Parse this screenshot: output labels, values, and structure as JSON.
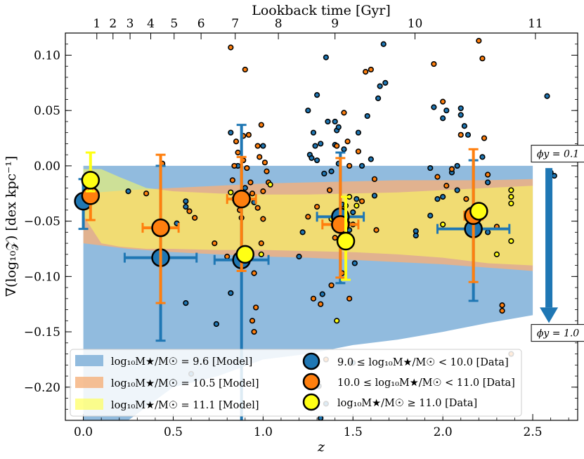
{
  "chart_data": {
    "type": "scatter",
    "title": "",
    "xlabel": "z",
    "ylabel": "∇(log₁₀𝒵) [dex kpc⁻¹]",
    "top_xlabel": "Lookback time [Gyr]",
    "xlim": [
      -0.1,
      2.75
    ],
    "ylim": [
      -0.23,
      0.12
    ],
    "xticks": [
      0.0,
      0.5,
      1.0,
      1.5,
      2.0,
      2.5
    ],
    "xtick_labels": [
      "0.0",
      "0.5",
      "1.0",
      "1.5",
      "2.0",
      "2.5"
    ],
    "yticks": [
      -0.2,
      -0.15,
      -0.1,
      -0.05,
      0.0,
      0.05,
      0.1
    ],
    "ytick_labels": [
      "−0.20",
      "−0.15",
      "−0.10",
      "−0.05",
      "0.00",
      "0.05",
      "0.10"
    ],
    "top_ticks": [
      {
        "z": 0.075,
        "label": "1"
      },
      {
        "z": 0.165,
        "label": "2"
      },
      {
        "z": 0.26,
        "label": "3"
      },
      {
        "z": 0.375,
        "label": "4"
      },
      {
        "z": 0.505,
        "label": "5"
      },
      {
        "z": 0.655,
        "label": "6"
      },
      {
        "z": 0.845,
        "label": "7"
      },
      {
        "z": 1.085,
        "label": "8"
      },
      {
        "z": 1.4,
        "label": "9"
      },
      {
        "z": 1.845,
        "label": "10"
      },
      {
        "z": 2.515,
        "label": "11"
      }
    ],
    "model_bands": [
      {
        "name": "log₁₀M★/M☉ = 9.6 [Model]",
        "color": "#8bb7dc",
        "z": [
          0.0,
          0.25,
          0.5,
          0.75,
          1.0,
          1.25,
          1.5,
          1.75,
          2.0,
          2.25,
          2.5
        ],
        "upper": [
          0.0,
          0.0,
          0.0,
          0.0,
          0.0,
          0.0,
          0.0,
          0.0,
          0.0,
          0.0,
          0.0
        ],
        "lower": [
          -0.23,
          -0.23,
          -0.2,
          -0.19,
          -0.175,
          -0.17,
          -0.162,
          -0.157,
          -0.15,
          -0.142,
          -0.135
        ]
      },
      {
        "name": "log₁₀M★/M☉ = 10.5 [Model]",
        "color": "#f5b07a",
        "z": [
          0.0,
          0.25,
          0.5,
          0.75,
          1.0,
          1.25,
          1.5,
          1.75,
          2.0,
          2.25,
          2.5
        ],
        "upper": [
          -0.025,
          -0.022,
          -0.02,
          -0.018,
          -0.016,
          -0.015,
          -0.014,
          -0.013,
          -0.013,
          -0.013,
          -0.012
        ],
        "lower": [
          -0.07,
          -0.075,
          -0.078,
          -0.08,
          -0.082,
          -0.083,
          -0.085,
          -0.087,
          -0.089,
          -0.092,
          -0.095
        ]
      },
      {
        "name": "log₁₀M★/M☉ = 11.1 [Model]",
        "color": "#ffff5c",
        "z": [
          0.0,
          0.1,
          0.2,
          0.35,
          0.5,
          0.75,
          1.0,
          1.25,
          1.5,
          1.75,
          2.0,
          2.25,
          2.5
        ],
        "upper": [
          -0.003,
          -0.003,
          -0.01,
          -0.02,
          -0.023,
          -0.025,
          -0.026,
          -0.026,
          -0.025,
          -0.024,
          -0.022,
          -0.02,
          -0.018
        ],
        "lower": [
          -0.045,
          -0.07,
          -0.073,
          -0.075,
          -0.075,
          -0.076,
          -0.076,
          -0.077,
          -0.078,
          -0.08,
          -0.083,
          -0.088,
          -0.09
        ]
      }
    ],
    "binned_data": [
      {
        "name": "9.0 ≤ log₁₀M★/M☉ < 10.0 [Data]",
        "color": "#1f77b4",
        "points": [
          {
            "z": 0.0,
            "y": -0.032,
            "xerr": [
              0.0,
              0.0
            ],
            "yerr": [
              0.025,
              0.02
            ]
          },
          {
            "z": 0.43,
            "y": -0.083,
            "xerr": [
              0.2,
              0.2
            ],
            "yerr": [
              0.075,
              0.083
            ]
          },
          {
            "z": 0.88,
            "y": -0.085,
            "xerr": [
              0.15,
              0.15
            ],
            "yerr": [
              0.15,
              0.122
            ]
          },
          {
            "z": 1.43,
            "y": -0.046,
            "xerr": [
              0.13,
              0.13
            ],
            "yerr": [
              0.06,
              0.058
            ]
          },
          {
            "z": 2.17,
            "y": -0.057,
            "xerr": [
              0.2,
              0.2
            ],
            "yerr": [
              0.065,
              0.062
            ]
          }
        ]
      },
      {
        "name": "10.0 ≤ log₁₀M★/M☉ < 11.0 [Data]",
        "color": "#ff7f0e",
        "points": [
          {
            "z": 0.04,
            "y": -0.027,
            "xerr": [
              0.0,
              0.0
            ],
            "yerr": [
              0.022,
              0.02
            ]
          },
          {
            "z": 0.43,
            "y": -0.056,
            "xerr": [
              0.1,
              0.1
            ],
            "yerr": [
              0.068,
              0.066
            ]
          },
          {
            "z": 0.88,
            "y": -0.03,
            "xerr": [
              0.08,
              0.08
            ],
            "yerr": [
              0.065,
              0.038
            ]
          },
          {
            "z": 1.43,
            "y": -0.053,
            "xerr": [
              0.1,
              0.1
            ],
            "yerr": [
              0.048,
              0.06
            ]
          },
          {
            "z": 2.17,
            "y": -0.045,
            "xerr": [
              0.05,
              0.05
            ],
            "yerr": [
              0.06,
              0.06
            ]
          }
        ]
      },
      {
        "name": "log₁₀M★/M☉ ≥ 11.0 [Data]",
        "color": "#ffff14",
        "points": [
          {
            "z": 0.04,
            "y": -0.013,
            "xerr": [
              0.0,
              0.0
            ],
            "yerr": [
              0.01,
              0.025
            ]
          },
          {
            "z": 0.9,
            "y": -0.08,
            "xerr": [
              0.0,
              0.0
            ],
            "yerr": [
              0.0,
              0.0
            ]
          },
          {
            "z": 1.46,
            "y": -0.068,
            "xerr": [
              0.0,
              0.0
            ],
            "yerr": [
              0.035,
              0.04
            ]
          },
          {
            "z": 2.2,
            "y": -0.041,
            "xerr": [
              0.0,
              0.0
            ],
            "yerr": [
              0.0,
              0.0
            ]
          }
        ]
      }
    ],
    "individual_points": [
      {
        "group": "blue",
        "pts": [
          [
            0.25,
            -0.023
          ],
          [
            0.52,
            -0.052
          ],
          [
            0.57,
            -0.032
          ],
          [
            0.57,
            -0.037
          ],
          [
            0.57,
            -0.124
          ],
          [
            0.6,
            -0.188
          ],
          [
            0.74,
            -0.143
          ],
          [
            0.82,
            -0.115
          ],
          [
            0.82,
            0.03
          ],
          [
            0.84,
            -0.03
          ],
          [
            0.86,
            0.0
          ],
          [
            0.9,
            -0.02
          ],
          [
            0.95,
            -0.033
          ],
          [
            1.0,
            0.018
          ],
          [
            1.2,
            -0.082
          ],
          [
            1.22,
            -0.06
          ],
          [
            1.25,
            0.05
          ],
          [
            1.26,
            0.01
          ],
          [
            1.27,
            0.007
          ],
          [
            1.28,
            0.03
          ],
          [
            1.3,
            0.005
          ],
          [
            1.3,
            0.064
          ],
          [
            1.32,
            0.02
          ],
          [
            1.33,
            -0.116
          ],
          [
            1.35,
            0.098
          ],
          [
            1.36,
            0.04
          ],
          [
            1.38,
            -0.005
          ],
          [
            1.4,
            0.019
          ],
          [
            1.4,
            0.04
          ],
          [
            1.41,
            0.032
          ],
          [
            1.42,
            0.035
          ],
          [
            1.45,
            0.015
          ],
          [
            1.48,
            -0.058
          ],
          [
            1.5,
            -0.042
          ],
          [
            1.51,
            -0.088
          ],
          [
            1.52,
            -0.03
          ],
          [
            1.55,
            0.0
          ],
          [
            1.58,
            0.045
          ],
          [
            1.6,
            0.006
          ],
          [
            1.62,
            -0.027
          ],
          [
            1.64,
            0.061
          ],
          [
            1.65,
            0.072
          ],
          [
            1.67,
            0.11
          ],
          [
            1.68,
            0.075
          ],
          [
            1.5,
            -0.178
          ],
          [
            1.31,
            -0.199
          ],
          [
            1.35,
            -0.215
          ],
          [
            1.32,
            -0.228
          ],
          [
            1.85,
            -0.059
          ],
          [
            1.85,
            -0.063
          ],
          [
            1.93,
            -0.045
          ],
          [
            1.95,
            0.053
          ],
          [
            1.97,
            -0.03
          ],
          [
            2.0,
            -0.028
          ],
          [
            2.0,
            0.043
          ],
          [
            2.02,
            0.05
          ],
          [
            2.05,
            -0.006
          ],
          [
            2.08,
            0.0
          ],
          [
            2.1,
            0.046
          ],
          [
            2.1,
            0.052
          ],
          [
            2.12,
            0.036
          ],
          [
            2.14,
            0.028
          ],
          [
            2.22,
            0.008
          ],
          [
            2.25,
            -0.015
          ],
          [
            2.25,
            -0.06
          ],
          [
            2.58,
            0.063
          ],
          [
            2.6,
            -0.006
          ],
          [
            2.62,
            -0.009
          ],
          [
            1.53,
            0.03
          ],
          [
            1.42,
            0.002
          ],
          [
            1.34,
            -0.007
          ],
          [
            1.29,
            0.018
          ],
          [
            1.44,
            -0.035
          ],
          [
            2.08,
            -0.022
          ],
          [
            1.93,
            -0.002
          ]
        ]
      },
      {
        "group": "orange",
        "pts": [
          [
            0.35,
            -0.025
          ],
          [
            0.44,
            0.002
          ],
          [
            0.59,
            -0.041
          ],
          [
            0.62,
            -0.047
          ],
          [
            0.73,
            -0.07
          ],
          [
            0.8,
            -0.082
          ],
          [
            0.82,
            0.107
          ],
          [
            0.83,
            -0.013
          ],
          [
            0.84,
            0.0
          ],
          [
            0.85,
            0.022
          ],
          [
            0.86,
            0.012
          ],
          [
            0.87,
            -0.04
          ],
          [
            0.88,
            -0.047
          ],
          [
            0.89,
            0.027
          ],
          [
            0.89,
            0.005
          ],
          [
            0.9,
            0.087
          ],
          [
            0.91,
            -0.002
          ],
          [
            0.92,
            0.028
          ],
          [
            0.93,
            -0.015
          ],
          [
            0.94,
            -0.025
          ],
          [
            0.95,
            -0.097
          ],
          [
            0.96,
            -0.128
          ],
          [
            0.97,
            0.018
          ],
          [
            0.98,
            0.008
          ],
          [
            0.99,
            0.037
          ],
          [
            1.0,
            -0.023
          ],
          [
            1.01,
            0.003
          ],
          [
            1.02,
            -0.005
          ],
          [
            1.03,
            -0.015
          ],
          [
            0.94,
            -0.14
          ],
          [
            0.95,
            -0.15
          ],
          [
            1.25,
            -0.046
          ],
          [
            1.28,
            -0.12
          ],
          [
            1.3,
            -0.037
          ],
          [
            1.32,
            -0.125
          ],
          [
            1.35,
            -0.175
          ],
          [
            1.37,
            -0.022
          ],
          [
            1.38,
            -0.108
          ],
          [
            1.4,
            -0.065
          ],
          [
            1.41,
            0.018
          ],
          [
            1.44,
            -0.097
          ],
          [
            1.45,
            0.048
          ],
          [
            1.47,
            0.022
          ],
          [
            1.48,
            0.0
          ],
          [
            1.48,
            -0.12
          ],
          [
            1.5,
            -0.053
          ],
          [
            1.53,
            0.013
          ],
          [
            1.55,
            -0.032
          ],
          [
            1.57,
            0.085
          ],
          [
            1.6,
            0.087
          ],
          [
            1.62,
            -0.012
          ],
          [
            1.63,
            -0.058
          ],
          [
            1.95,
            0.092
          ],
          [
            1.97,
            -0.01
          ],
          [
            2.0,
            0.058
          ],
          [
            2.02,
            -0.018
          ],
          [
            2.05,
            -0.003
          ],
          [
            2.1,
            0.028
          ],
          [
            2.13,
            -0.03
          ],
          [
            2.2,
            0.113
          ],
          [
            2.22,
            0.097
          ],
          [
            2.23,
            0.025
          ],
          [
            2.25,
            -0.008
          ],
          [
            2.3,
            -0.055
          ],
          [
            2.33,
            -0.126
          ],
          [
            2.33,
            -0.131
          ],
          [
            2.38,
            -0.17
          ],
          [
            0.97,
            -0.038
          ],
          [
            1.0,
            -0.048
          ],
          [
            0.99,
            -0.07
          ]
        ]
      },
      {
        "group": "yellow",
        "pts": [
          [
            0.99,
            -0.08
          ],
          [
            1.41,
            -0.14
          ],
          [
            1.44,
            -0.043
          ],
          [
            1.46,
            -0.036
          ],
          [
            1.48,
            -0.028
          ],
          [
            1.47,
            -0.052
          ],
          [
            1.52,
            -0.036
          ],
          [
            1.38,
            -0.048
          ],
          [
            2.38,
            -0.022
          ],
          [
            2.38,
            -0.028
          ],
          [
            2.38,
            -0.034
          ],
          [
            2.38,
            -0.068
          ],
          [
            1.04,
            -0.017
          ],
          [
            0.82,
            -0.024
          ],
          [
            2.0,
            -0.053
          ],
          [
            2.3,
            -0.08
          ]
        ]
      }
    ],
    "annotations": [
      {
        "text": "ϕy = 0.1",
        "z": 2.5,
        "y": 0.011
      },
      {
        "text": "ϕy = 1.0",
        "z": 2.5,
        "y": -0.151
      }
    ],
    "legend_position": "lower-left",
    "arrow_color": "#1f77b4"
  }
}
